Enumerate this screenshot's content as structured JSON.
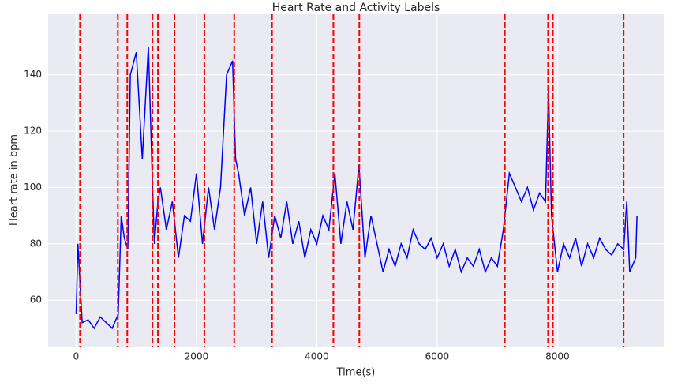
{
  "chart_data": {
    "type": "line",
    "title": "Heart Rate and Activity Labels",
    "xlabel": "Time(s)",
    "ylabel": "Heart rate in bpm",
    "x": [
      0,
      30,
      100,
      200,
      300,
      400,
      500,
      600,
      700,
      750,
      800,
      860,
      900,
      1000,
      1100,
      1200,
      1270,
      1300,
      1360,
      1400,
      1500,
      1600,
      1700,
      1800,
      1900,
      2000,
      2100,
      2200,
      2300,
      2400,
      2500,
      2600,
      2650,
      2700,
      2800,
      2900,
      3000,
      3100,
      3200,
      3300,
      3400,
      3500,
      3600,
      3700,
      3800,
      3900,
      4000,
      4100,
      4200,
      4300,
      4400,
      4500,
      4600,
      4700,
      4800,
      4900,
      5000,
      5100,
      5200,
      5300,
      5400,
      5500,
      5600,
      5700,
      5800,
      5900,
      6000,
      6100,
      6200,
      6300,
      6400,
      6500,
      6600,
      6700,
      6800,
      6900,
      7000,
      7100,
      7200,
      7300,
      7400,
      7500,
      7600,
      7700,
      7800,
      7850,
      7900,
      8000,
      8100,
      8200,
      8300,
      8400,
      8500,
      8600,
      8700,
      8800,
      8900,
      9000,
      9100,
      9150,
      9200,
      9300,
      9320
    ],
    "values": [
      55,
      80,
      52,
      53,
      50,
      54,
      52,
      50,
      55,
      90,
      82,
      78,
      140,
      148,
      110,
      150,
      100,
      80,
      95,
      100,
      85,
      95,
      75,
      90,
      88,
      105,
      80,
      100,
      85,
      100,
      140,
      145,
      110,
      105,
      90,
      100,
      80,
      95,
      75,
      90,
      82,
      95,
      80,
      88,
      75,
      85,
      80,
      90,
      85,
      105,
      80,
      95,
      85,
      108,
      75,
      90,
      80,
      70,
      78,
      72,
      80,
      75,
      85,
      80,
      78,
      82,
      75,
      80,
      72,
      78,
      70,
      75,
      72,
      78,
      70,
      75,
      72,
      85,
      105,
      100,
      95,
      100,
      92,
      98,
      95,
      135,
      90,
      70,
      80,
      75,
      82,
      72,
      80,
      75,
      82,
      78,
      76,
      80,
      78,
      95,
      70,
      75,
      90
    ],
    "color": "#0000ff",
    "vlines": [
      65,
      693,
      850,
      1268,
      1359,
      1634,
      2131,
      2627,
      3255,
      4275,
      4706,
      7124,
      7843,
      7922,
      9098
    ],
    "vline_color": "#ff0000",
    "xlim": [
      -465,
      9765
    ],
    "ylim": [
      43.5,
      161.5
    ],
    "xticks": [
      0,
      2000,
      4000,
      6000,
      8000
    ],
    "yticks": [
      60,
      80,
      100,
      120,
      140
    ],
    "grid": true
  }
}
